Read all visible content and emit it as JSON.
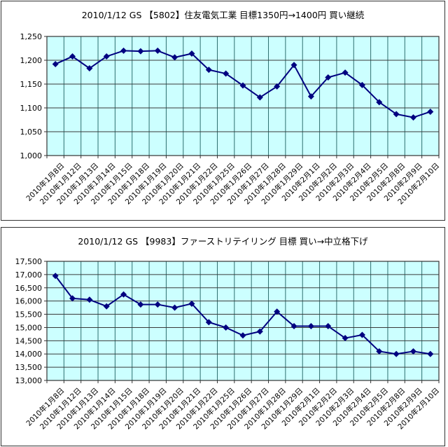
{
  "chart_data": [
    {
      "type": "line",
      "title": "2010/1/12 GS 【5802】住友電気工業 目標1350円→1400円 買い継続",
      "categories": [
        "2010年1月8日",
        "2010年1月12日",
        "2010年1月13日",
        "2010年1月14日",
        "2010年1月15日",
        "2010年1月18日",
        "2010年1月19日",
        "2010年1月20日",
        "2010年1月21日",
        "2010年1月22日",
        "2010年1月25日",
        "2010年1月26日",
        "2010年1月27日",
        "2010年1月28日",
        "2010年1月29日",
        "2010年2月1日",
        "2010年2月2日",
        "2010年2月3日",
        "2010年2月4日",
        "2010年2月5日",
        "2010年2月8日",
        "2010年2月9日",
        "2010年2月10日"
      ],
      "values": [
        1192,
        1208,
        1183,
        1208,
        1220,
        1219,
        1220,
        1206,
        1214,
        1180,
        1172,
        1147,
        1122,
        1145,
        1190,
        1124,
        1164,
        1174,
        1148,
        1112,
        1087,
        1080,
        1092
      ],
      "xlabel": "",
      "ylabel": "",
      "ylim": [
        1000,
        1250
      ],
      "ytick_step": 50,
      "ytick_labels": [
        "1,000",
        "1,050",
        "1,100",
        "1,150",
        "1,200",
        "1,250"
      ],
      "grid": true,
      "legend": "none",
      "colors": {
        "series": "#000080",
        "plot_bg": "#ccffff",
        "grid_v": "#2f6f6f",
        "grid_h": "#3a3a3a",
        "axis": "#333333",
        "text": "#000000"
      }
    },
    {
      "type": "line",
      "title": "2010/1/12 GS 【9983】ファーストリテイリング 目標 買い→中立格下げ",
      "categories": [
        "2010年1月8日",
        "2010年1月12日",
        "2010年1月13日",
        "2010年1月14日",
        "2010年1月15日",
        "2010年1月18日",
        "2010年1月19日",
        "2010年1月20日",
        "2010年1月21日",
        "2010年1月22日",
        "2010年1月25日",
        "2010年1月26日",
        "2010年1月27日",
        "2010年1月28日",
        "2010年1月29日",
        "2010年2月1日",
        "2010年2月2日",
        "2010年2月3日",
        "2010年2月4日",
        "2010年2月5日",
        "2010年2月8日",
        "2010年2月9日",
        "2010年2月10日"
      ],
      "values": [
        16950,
        16100,
        16050,
        15800,
        16250,
        15870,
        15870,
        15750,
        15900,
        15200,
        15000,
        14700,
        14850,
        15600,
        15050,
        15050,
        15050,
        14600,
        14720,
        14100,
        14000,
        14100,
        14000
      ],
      "xlabel": "",
      "ylabel": "",
      "ylim": [
        13000,
        17500
      ],
      "ytick_step": 500,
      "ytick_labels": [
        "13,000",
        "13,500",
        "14,000",
        "14,500",
        "15,000",
        "15,500",
        "16,000",
        "16,500",
        "17,000",
        "17,500"
      ],
      "grid": true,
      "legend": "none",
      "colors": {
        "series": "#000080",
        "plot_bg": "#ccffff",
        "grid_v": "#2f6f6f",
        "grid_h": "#3a3a3a",
        "axis": "#333333",
        "text": "#000000"
      }
    }
  ]
}
